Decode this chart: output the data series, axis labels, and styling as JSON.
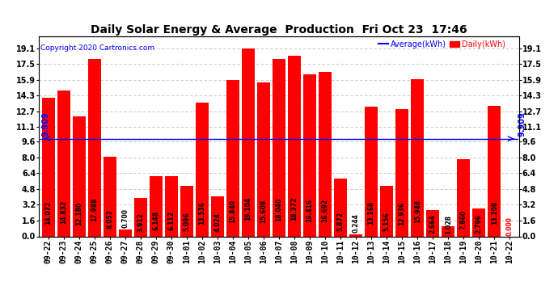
{
  "title": "Daily Solar Energy & Average  Production  Fri Oct 23  17:46",
  "copyright": "Copyright 2020 Cartronics.com",
  "legend_average": "Average(kWh)",
  "legend_daily": "Daily(kWh)",
  "average_value": 9.909,
  "categories": [
    "09-22",
    "09-23",
    "09-24",
    "09-25",
    "09-26",
    "09-27",
    "09-28",
    "09-29",
    "09-30",
    "10-01",
    "10-02",
    "10-03",
    "10-04",
    "10-05",
    "10-06",
    "10-07",
    "10-08",
    "10-09",
    "10-10",
    "10-11",
    "10-12",
    "10-13",
    "10-14",
    "10-15",
    "10-16",
    "10-17",
    "10-18",
    "10-19",
    "10-20",
    "10-21",
    "10-22"
  ],
  "values": [
    14.072,
    14.832,
    12.18,
    17.988,
    8.052,
    0.7,
    3.912,
    6.148,
    6.112,
    5.096,
    13.536,
    4.024,
    15.84,
    19.104,
    15.608,
    18.04,
    18.372,
    16.416,
    16.692,
    5.872,
    0.244,
    13.168,
    5.156,
    12.936,
    15.948,
    2.664,
    1.028,
    7.86,
    2.796,
    13.208,
    0.0
  ],
  "bar_color": "#ff0000",
  "avg_line_color": "#0000ff",
  "background_color": "#ffffff",
  "grid_color": "#c0c0c0",
  "yticks": [
    0.0,
    1.6,
    3.2,
    4.8,
    6.4,
    8.0,
    9.6,
    11.1,
    12.7,
    14.3,
    15.9,
    17.5,
    19.1
  ],
  "ylim": [
    0.0,
    20.3
  ],
  "title_fontsize": 10,
  "label_fontsize": 5.5,
  "tick_fontsize": 7,
  "avg_label_fontsize": 7,
  "copyright_fontsize": 6.5
}
